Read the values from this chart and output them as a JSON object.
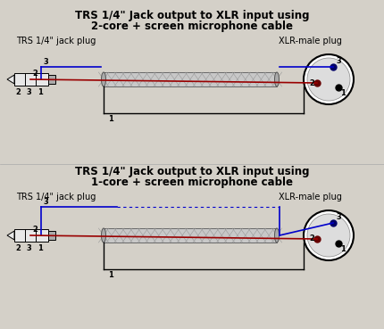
{
  "title1_line1": "TRS 1/4\" Jack output to XLR input using",
  "title1_line2": "2-core + screen microphone cable",
  "title2_line1": "TRS 1/4\" Jack output to XLR input using",
  "title2_line2": "1-core + screen microphone cable",
  "label_trs": "TRS 1/4\" jack plug",
  "label_xlr": "XLR-male plug",
  "bg_color": "#d4d0c8",
  "line_blue": "#0000cc",
  "line_red": "#990000",
  "line_black": "#000000",
  "cable_fill": "#c8c8c8",
  "cable_hatch": "#888888",
  "xlr_fill": "#dddddd",
  "jack_fill": "#e8e8e8",
  "title_fontsize": 8.5,
  "label_fontsize": 7,
  "pin_fontsize": 6,
  "seg_fontsize": 6
}
